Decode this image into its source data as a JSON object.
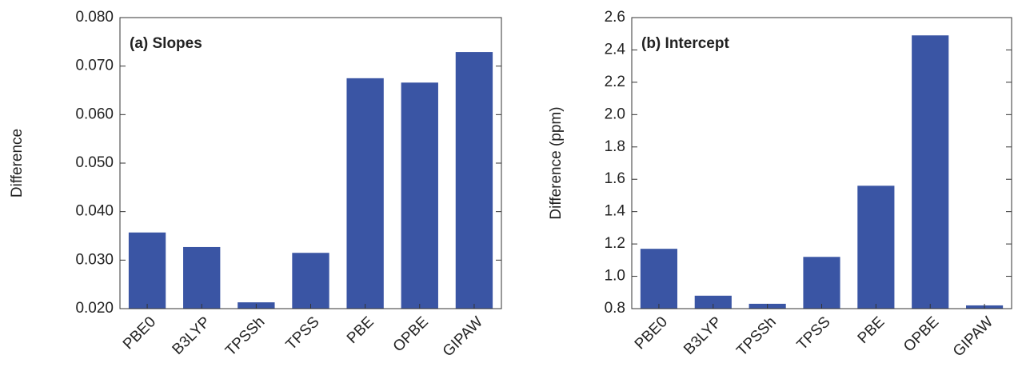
{
  "chart_data": [
    {
      "type": "bar",
      "annotation": "(a) Slopes",
      "ylabel": "Difference",
      "categories": [
        "PBE0",
        "B3LYP",
        "TPSSh",
        "TPSS",
        "PBE",
        "OPBE",
        "GIPAW"
      ],
      "values": [
        0.0357,
        0.0327,
        0.0213,
        0.0315,
        0.0675,
        0.0666,
        0.0729
      ],
      "color": "#3a55a4",
      "ylim": [
        0.02,
        0.08
      ],
      "yticks": [
        {
          "value": 0.02,
          "label": "0.020"
        },
        {
          "value": 0.03,
          "label": "0.030"
        },
        {
          "value": 0.04,
          "label": "0.040"
        },
        {
          "value": 0.05,
          "label": "0.050"
        },
        {
          "value": 0.06,
          "label": "0.060"
        },
        {
          "value": 0.07,
          "label": "0.070"
        },
        {
          "value": 0.08,
          "label": "0.080"
        }
      ],
      "grid": false
    },
    {
      "type": "bar",
      "annotation": "(b) Intercept",
      "ylabel": "Difference (ppm)",
      "categories": [
        "PBE0",
        "B3LYP",
        "TPSSh",
        "TPSS",
        "PBE",
        "OPBE",
        "GIPAW"
      ],
      "values": [
        1.17,
        0.88,
        0.83,
        1.12,
        1.56,
        2.49,
        0.82
      ],
      "color": "#3a55a4",
      "ylim": [
        0.8,
        2.6
      ],
      "yticks": [
        0.8,
        {
          "value": 1.0,
          "label": "1.0"
        },
        1.2,
        1.4,
        1.6,
        1.8,
        {
          "value": 2.0,
          "label": "2.0"
        },
        2.2,
        2.4,
        2.6
      ],
      "grid": false
    }
  ]
}
